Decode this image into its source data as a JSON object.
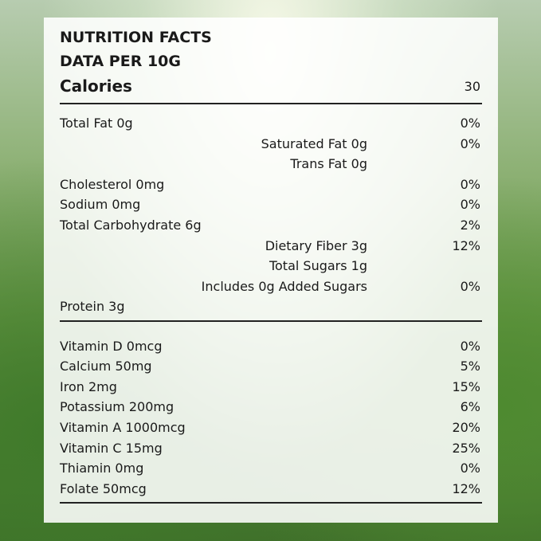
{
  "header": {
    "title": "NUTRITION FACTS",
    "subtitle": "DATA PER 10G"
  },
  "calories": {
    "label": "Calories",
    "value": 30
  },
  "sections": [
    {
      "rows": [
        {
          "label": "Total Fat 0g",
          "percent": "0%",
          "indent": false
        },
        {
          "label": "Saturated Fat 0g",
          "percent": "0%",
          "indent": true
        },
        {
          "label": "Trans Fat 0g",
          "indent": true
        },
        {
          "label": "Cholesterol 0mg",
          "percent": "0%",
          "indent": false
        },
        {
          "label": "Sodium 0mg",
          "percent": "0%",
          "indent": false
        },
        {
          "label": "Total Carbohydrate 6g",
          "percent": "2%",
          "indent": false
        },
        {
          "label": "Dietary Fiber 3g",
          "percent": "12%",
          "indent": true
        },
        {
          "label": "Total Sugars 1g",
          "indent": true
        },
        {
          "label": "Includes 0g Added Sugars",
          "percent": "0%",
          "indent": true
        },
        {
          "label": "Protein 3g",
          "indent": false
        }
      ]
    },
    {
      "rows": [
        {
          "label": "Vitamin D 0mcg",
          "percent": "0%",
          "indent": false
        },
        {
          "label": "Calcium 50mg",
          "percent": "5%",
          "indent": false
        },
        {
          "label": "Iron 2mg",
          "percent": "15%",
          "indent": false
        },
        {
          "label": "Potassium 200mg",
          "percent": "6%",
          "indent": false
        },
        {
          "label": "Vitamin A 1000mcg",
          "percent": "20%",
          "indent": false
        },
        {
          "label": "Vitamin C 15mg",
          "percent": "25%",
          "indent": false
        },
        {
          "label": "Thiamin 0mg",
          "percent": "0%",
          "indent": false
        },
        {
          "label": "Folate 50mcg",
          "percent": "12%",
          "indent": false
        }
      ]
    }
  ]
}
